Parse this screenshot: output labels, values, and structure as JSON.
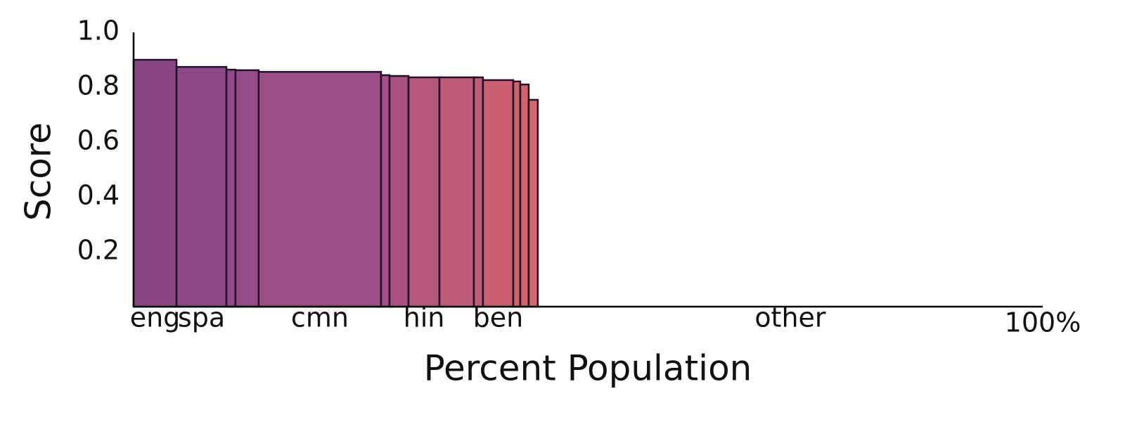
{
  "chart_data": {
    "type": "variable-width-bar",
    "xlabel": "Percent Population",
    "ylabel": "Score",
    "categories": [
      "eng",
      "spa",
      null,
      null,
      "cmn",
      null,
      null,
      "hin",
      null,
      null,
      "ben",
      null,
      null,
      null,
      "other"
    ],
    "widths": [
      4.72,
      5.49,
      1.0,
      2.55,
      13.46,
      0.93,
      2.09,
      3.4,
      3.79,
      1.0,
      3.33,
      0.77,
      0.93,
      1.0,
      55.54
    ],
    "values": [
      0.9,
      0.874,
      0.864,
      0.862,
      0.856,
      0.844,
      0.841,
      0.836,
      0.836,
      0.836,
      0.826,
      0.821,
      0.81,
      0.754,
      null
    ],
    "colors": [
      "#8a4587",
      "#8e4788",
      "#924889",
      "#954a89",
      "#9c4e86",
      "#a44f83",
      "#a95180",
      "#b6577d",
      "#bf5a79",
      "#c25b76",
      "#cb5f6f",
      "#cf616d",
      "#d2636b",
      "#d6666a",
      null
    ],
    "xlim": [
      0,
      100
    ],
    "xticks": [
      {
        "value": 100,
        "label": "100%"
      }
    ],
    "ylim": [
      0,
      1
    ],
    "yticks": [
      0.2,
      0.4,
      0.6,
      0.8,
      {
        "value": 1,
        "label": "1.0"
      }
    ]
  }
}
